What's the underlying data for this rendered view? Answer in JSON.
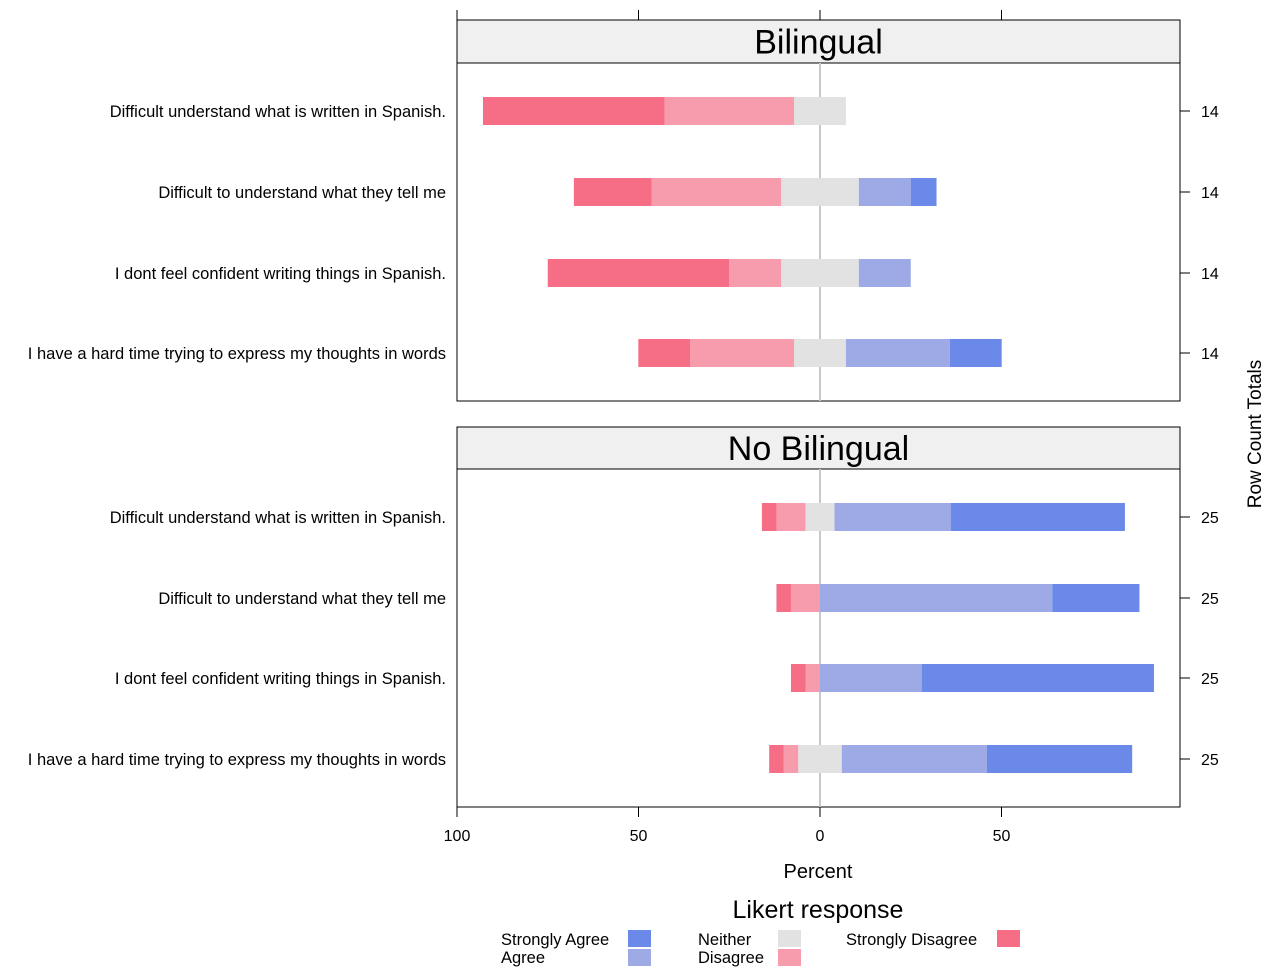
{
  "chart_data": {
    "type": "bar",
    "subtype": "diverging-stacked-likert",
    "xlabel": "Percent",
    "right_axis_label": "Row Count Totals",
    "xticks": [
      {
        "value": -100,
        "label": "100"
      },
      {
        "value": -50,
        "label": "50"
      },
      {
        "value": 0,
        "label": "0"
      },
      {
        "value": 50,
        "label": "50"
      }
    ],
    "xlim": [
      -100,
      99
    ],
    "legend": {
      "title": "Likert response",
      "placement": "bottom",
      "items": [
        {
          "name": "Strongly Agree",
          "color": "#6b89e8"
        },
        {
          "name": "Agree",
          "color": "#9daae6"
        },
        {
          "name": "Neither",
          "color": "#e2e2e2"
        },
        {
          "name": "Disagree",
          "color": "#f69cac"
        },
        {
          "name": "Strongly Disagree",
          "color": "#f66d86"
        }
      ]
    },
    "segment_order": [
      "Strongly Disagree",
      "Disagree",
      "Neither",
      "Agree",
      "Strongly Agree"
    ],
    "panels": [
      {
        "title": "Bilingual",
        "rows": [
          {
            "label": "Difficult  understand what is written in Spanish.",
            "total": "14",
            "Strongly Disagree": 50,
            "Disagree": 35.7,
            "Neither": 14.3,
            "Agree": 0,
            "Strongly Agree": 0
          },
          {
            "label": "Difficult to understand what they tell me",
            "total": "14",
            "Strongly Disagree": 21.4,
            "Disagree": 35.7,
            "Neither": 21.4,
            "Agree": 14.3,
            "Strongly Agree": 7.1
          },
          {
            "label": "I dont feel confident writing things in Spanish.",
            "total": "14",
            "Strongly Disagree": 50,
            "Disagree": 14.3,
            "Neither": 21.4,
            "Agree": 14.3,
            "Strongly Agree": 0
          },
          {
            "label": "I have a hard time trying to express my thoughts in words",
            "total": "14",
            "Strongly Disagree": 14.3,
            "Disagree": 28.6,
            "Neither": 14.3,
            "Agree": 28.6,
            "Strongly Agree": 14.3
          }
        ]
      },
      {
        "title": "No Bilingual",
        "rows": [
          {
            "label": "Difficult  understand what is written in Spanish.",
            "total": "25",
            "Strongly Disagree": 4,
            "Disagree": 8,
            "Neither": 8,
            "Agree": 32,
            "Strongly Agree": 48
          },
          {
            "label": "Difficult to understand what they tell me",
            "total": "25",
            "Strongly Disagree": 4,
            "Disagree": 8,
            "Neither": 0,
            "Agree": 64,
            "Strongly Agree": 24
          },
          {
            "label": "I dont feel confident writing things in Spanish.",
            "total": "25",
            "Strongly Disagree": 4,
            "Disagree": 4,
            "Neither": 0,
            "Agree": 28,
            "Strongly Agree": 64
          },
          {
            "label": "I have a hard time trying to express my thoughts in words",
            "total": "25",
            "Strongly Disagree": 4,
            "Disagree": 4,
            "Neither": 12,
            "Agree": 40,
            "Strongly Agree": 40
          }
        ]
      }
    ]
  }
}
